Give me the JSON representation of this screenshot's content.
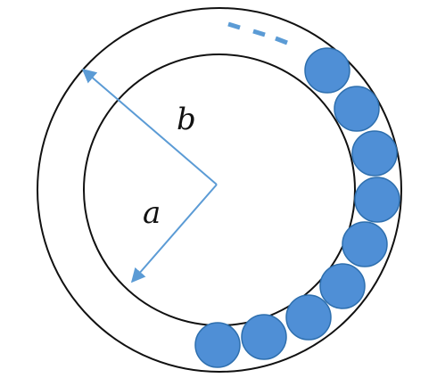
{
  "labels": {
    "outer_radius": "b",
    "inner_radius": "a"
  },
  "colors": {
    "ring_stroke": "#111111",
    "arrow": "#5b9bd5",
    "ball_fill": "#4f8fd6",
    "ball_stroke": "#2e6fae",
    "continuation_dashes": "#5b9bd5"
  },
  "balls": {
    "count": 9
  },
  "continuation_marker": "- - -"
}
